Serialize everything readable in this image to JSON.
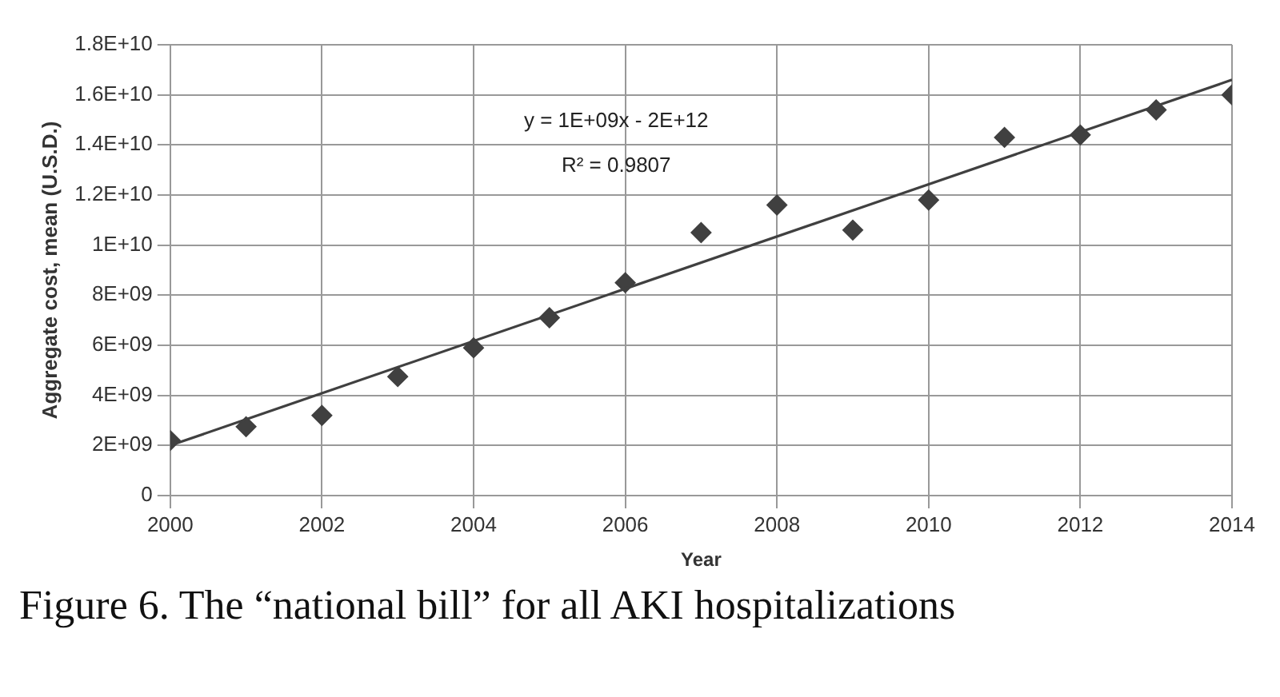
{
  "chart_data": {
    "type": "scatter",
    "xlabel": "Year",
    "ylabel": "Aggregate cost, mean (U.S.D.)",
    "annotations": [
      "y = 1E+09x - 2E+12",
      "R² = 0.9807",
      "Figure 6. The “national bill” for all AKI hospitalizations"
    ],
    "x": [
      2000,
      2001,
      2002,
      2003,
      2004,
      2005,
      2006,
      2007,
      2008,
      2009,
      2010,
      2011,
      2012,
      2013,
      2014
    ],
    "series": [
      {
        "color": "#404040",
        "values": [
          2200000000,
          2750000000,
          3200000000,
          4750000000,
          5900000000,
          7100000000,
          8500000000,
          10500000000,
          11600000000,
          10600000000,
          11800000000,
          14300000000,
          14400000000,
          15400000000,
          16000000000
        ]
      },
      {
        "type": "line",
        "marker": "none",
        "color": "#404040",
        "x": [
          2000,
          2014
        ],
        "values": [
          2000000000,
          16600000000
        ]
      }
    ],
    "xlim": [
      2000,
      2014
    ],
    "xticks": [
      2000,
      2002,
      2004,
      2006,
      2008,
      2010,
      2012,
      2014
    ],
    "ylim": [
      0,
      18000000000
    ],
    "yticks": [
      {
        "value": 0,
        "label": "0"
      },
      {
        "value": 2000000000,
        "label": "2E+09"
      },
      {
        "value": 4000000000,
        "label": "4E+09"
      },
      {
        "value": 6000000000,
        "label": "6E+09"
      },
      {
        "value": 8000000000,
        "label": "8E+09"
      },
      {
        "value": 10000000000,
        "label": "1E+10"
      },
      {
        "value": 12000000000,
        "label": "1.2E+10"
      },
      {
        "value": 14000000000,
        "label": "1.4E+10"
      },
      {
        "value": 16000000000,
        "label": "1.6E+10"
      },
      {
        "value": 18000000000,
        "label": "1.8E+10"
      }
    ],
    "grid": true,
    "legend": false,
    "marker": "diamond",
    "line_style": "solid"
  }
}
